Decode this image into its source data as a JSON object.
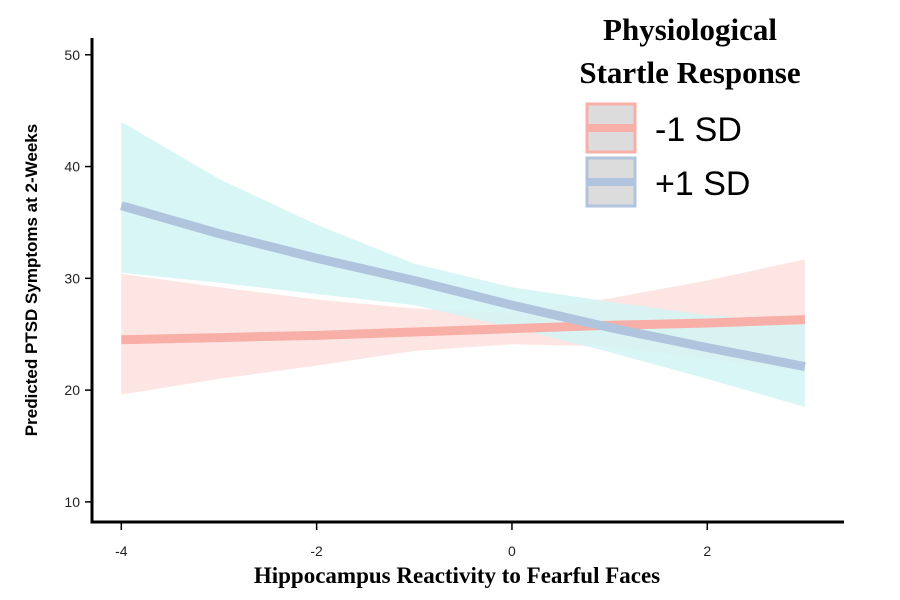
{
  "chart_data": {
    "type": "line",
    "xlabel": "Hippocampus Reactivity to Fearful Faces",
    "ylabel": "Predicted PTSD Symptoms at 2-Weeks",
    "xlim": [
      -4.3,
      3.4
    ],
    "ylim": [
      8.2,
      51.5
    ],
    "x_ticks": [
      -4,
      -2,
      0,
      2
    ],
    "x_tick_labels": [
      "-4",
      "-2",
      "0",
      "2"
    ],
    "y_ticks": [
      10,
      20,
      30,
      40,
      50
    ],
    "y_tick_labels": [
      "10",
      "20",
      "30",
      "40",
      "50"
    ],
    "grid": false,
    "legend": {
      "title_lines": [
        "Physiological",
        "Startle Response"
      ],
      "position": "top-right"
    },
    "series": [
      {
        "name": "-1 SD",
        "color": "#F8AFA8",
        "band_color": "#FDE0DE",
        "x": [
          -4,
          -3,
          -2,
          -1,
          0,
          1,
          2,
          3
        ],
        "y": [
          24.5,
          24.7,
          24.9,
          25.2,
          25.5,
          25.8,
          26.0,
          26.3
        ],
        "lower": [
          19.6,
          21.0,
          22.2,
          23.5,
          24.1,
          23.9,
          22.8,
          21.7
        ],
        "upper": [
          30.4,
          29.2,
          28.1,
          27.3,
          26.9,
          28.2,
          29.8,
          31.7
        ]
      },
      {
        "name": "+1 SD",
        "color": "#B0C4DE",
        "band_color": "#D2F4F4",
        "x": [
          -4,
          -3,
          -2,
          -1,
          0,
          1,
          2,
          3
        ],
        "y": [
          36.5,
          34.0,
          31.8,
          29.8,
          27.6,
          25.6,
          23.8,
          22.1
        ],
        "lower": [
          30.5,
          29.6,
          28.6,
          27.6,
          25.6,
          23.4,
          21.0,
          18.5
        ],
        "upper": [
          44.0,
          38.9,
          34.8,
          31.3,
          29.2,
          27.9,
          26.7,
          26.1
        ]
      }
    ]
  }
}
